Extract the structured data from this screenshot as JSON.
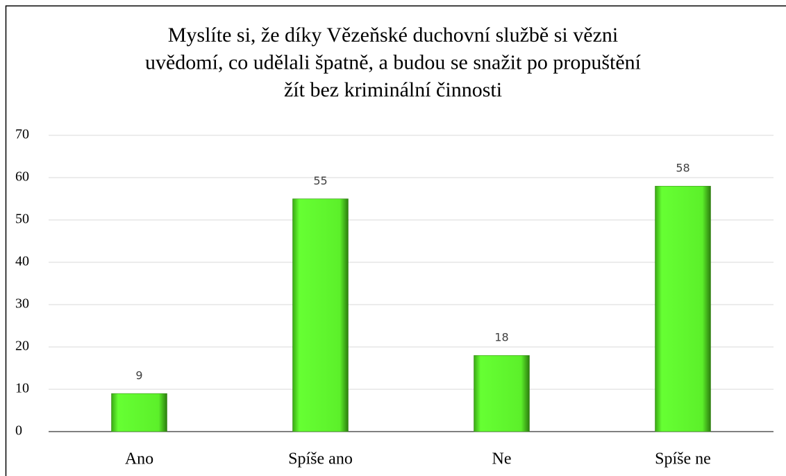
{
  "chart_data": {
    "type": "bar",
    "title": [
      "Myslíte si, že díky Vězeňské duchovní službě si vězni",
      "uvědomí, co udělali špatně, a budou se snažit po propuštění",
      "žít bez kriminální činnosti"
    ],
    "categories": [
      "Ano",
      "Spíše ano",
      "Ne",
      "Spíše ne"
    ],
    "values": [
      9,
      55,
      18,
      58
    ],
    "color": "#5cf02a",
    "ylim": [
      0,
      70
    ],
    "yticks": [
      0,
      10,
      20,
      30,
      40,
      50,
      60,
      70
    ],
    "grid": true
  }
}
